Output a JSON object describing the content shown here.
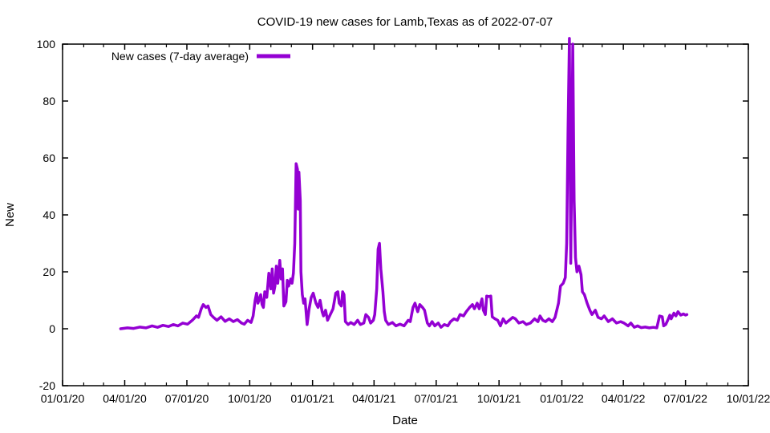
{
  "title": "COVID-19 new cases for Lamb,Texas as of 2022-07-07",
  "legend": {
    "label": "New cases (7-day average)"
  },
  "axes": {
    "x_label": "Date",
    "y_label": "New",
    "x_tick_labels": [
      "01/01/20",
      "04/01/20",
      "07/01/20",
      "10/01/20",
      "01/01/21",
      "04/01/21",
      "07/01/21",
      "10/01/21",
      "01/01/22",
      "04/01/22",
      "07/01/22",
      "10/01/22"
    ],
    "y_tick_labels": [
      "-20",
      "0",
      "20",
      "40",
      "60",
      "80",
      "100"
    ]
  },
  "colors": {
    "line": "#9400d3",
    "axis": "#000000",
    "text": "#000000",
    "background": "#ffffff"
  },
  "chart_data": {
    "type": "line",
    "title": "COVID-19 new cases for Lamb,Texas as of 2022-07-07",
    "xlabel": "Date",
    "ylabel": "New",
    "x_range": [
      "2020-01-01",
      "2022-10-01"
    ],
    "ylim": [
      -20,
      100
    ],
    "grid": false,
    "legend_position": "top-left-inside",
    "x_ticks": [
      {
        "t": "2020-01-01",
        "label": "01/01/20"
      },
      {
        "t": "2020-04-01",
        "label": "04/01/20"
      },
      {
        "t": "2020-07-01",
        "label": "07/01/20"
      },
      {
        "t": "2020-10-01",
        "label": "10/01/20"
      },
      {
        "t": "2021-01-01",
        "label": "01/01/21"
      },
      {
        "t": "2021-04-01",
        "label": "04/01/21"
      },
      {
        "t": "2021-07-01",
        "label": "07/01/21"
      },
      {
        "t": "2021-10-01",
        "label": "10/01/21"
      },
      {
        "t": "2022-01-01",
        "label": "01/01/22"
      },
      {
        "t": "2022-04-01",
        "label": "04/01/22"
      },
      {
        "t": "2022-07-01",
        "label": "07/01/22"
      },
      {
        "t": "2022-10-01",
        "label": "10/01/22"
      }
    ],
    "y_ticks": [
      -20,
      0,
      20,
      40,
      60,
      80,
      100
    ],
    "series": [
      {
        "name": "New cases (7-day average)",
        "color": "#9400d3",
        "points": [
          [
            "2020-03-26",
            0
          ],
          [
            "2020-04-05",
            0.3
          ],
          [
            "2020-04-14",
            0.1
          ],
          [
            "2020-04-23",
            0.6
          ],
          [
            "2020-05-02",
            0.3
          ],
          [
            "2020-05-11",
            1
          ],
          [
            "2020-05-19",
            0.5
          ],
          [
            "2020-05-27",
            1.2
          ],
          [
            "2020-06-04",
            0.8
          ],
          [
            "2020-06-11",
            1.5
          ],
          [
            "2020-06-18",
            1
          ],
          [
            "2020-06-25",
            2
          ],
          [
            "2020-07-02",
            1.6
          ],
          [
            "2020-07-09",
            3
          ],
          [
            "2020-07-15",
            4.5
          ],
          [
            "2020-07-18",
            4
          ],
          [
            "2020-07-22",
            7
          ],
          [
            "2020-07-25",
            8.5
          ],
          [
            "2020-07-29",
            7.5
          ],
          [
            "2020-08-01",
            8
          ],
          [
            "2020-08-05",
            5
          ],
          [
            "2020-08-09",
            4
          ],
          [
            "2020-08-14",
            3
          ],
          [
            "2020-08-20",
            4.2
          ],
          [
            "2020-08-26",
            2.6
          ],
          [
            "2020-09-01",
            3.5
          ],
          [
            "2020-09-07",
            2.5
          ],
          [
            "2020-09-13",
            3.2
          ],
          [
            "2020-09-19",
            2
          ],
          [
            "2020-09-23",
            1.6
          ],
          [
            "2020-09-28",
            3
          ],
          [
            "2020-10-03",
            2.2
          ],
          [
            "2020-10-06",
            4.5
          ],
          [
            "2020-10-09",
            10
          ],
          [
            "2020-10-11",
            12.5
          ],
          [
            "2020-10-13",
            9
          ],
          [
            "2020-10-17",
            12
          ],
          [
            "2020-10-19",
            8.5
          ],
          [
            "2020-10-21",
            7.5
          ],
          [
            "2020-10-23",
            13
          ],
          [
            "2020-10-26",
            11
          ],
          [
            "2020-10-29",
            19.5
          ],
          [
            "2020-11-01",
            14
          ],
          [
            "2020-11-03",
            21
          ],
          [
            "2020-11-05",
            12.5
          ],
          [
            "2020-11-07",
            15
          ],
          [
            "2020-11-09",
            22
          ],
          [
            "2020-11-11",
            16
          ],
          [
            "2020-11-14",
            24
          ],
          [
            "2020-11-16",
            17.5
          ],
          [
            "2020-11-18",
            21
          ],
          [
            "2020-11-20",
            8
          ],
          [
            "2020-11-23",
            9.5
          ],
          [
            "2020-11-25",
            17
          ],
          [
            "2020-11-27",
            15
          ],
          [
            "2020-11-30",
            17.5
          ],
          [
            "2020-12-02",
            16
          ],
          [
            "2020-12-04",
            19.5
          ],
          [
            "2020-12-06",
            30
          ],
          [
            "2020-12-08",
            58
          ],
          [
            "2020-12-10",
            56
          ],
          [
            "2020-12-11",
            42
          ],
          [
            "2020-12-12",
            55
          ],
          [
            "2020-12-14",
            45
          ],
          [
            "2020-12-15",
            20
          ],
          [
            "2020-12-17",
            12
          ],
          [
            "2020-12-19",
            9
          ],
          [
            "2020-12-21",
            10.5
          ],
          [
            "2020-12-24",
            1.5
          ],
          [
            "2020-12-27",
            7
          ],
          [
            "2020-12-30",
            11
          ],
          [
            "2021-01-02",
            12.5
          ],
          [
            "2021-01-06",
            9
          ],
          [
            "2021-01-09",
            7.5
          ],
          [
            "2021-01-12",
            10
          ],
          [
            "2021-01-15",
            6
          ],
          [
            "2021-01-17",
            4.5
          ],
          [
            "2021-01-20",
            6.5
          ],
          [
            "2021-01-23",
            3
          ],
          [
            "2021-01-27",
            5
          ],
          [
            "2021-01-31",
            7
          ],
          [
            "2021-02-04",
            12.5
          ],
          [
            "2021-02-07",
            13
          ],
          [
            "2021-02-09",
            9
          ],
          [
            "2021-02-12",
            8
          ],
          [
            "2021-02-14",
            13
          ],
          [
            "2021-02-16",
            12
          ],
          [
            "2021-02-18",
            2.5
          ],
          [
            "2021-02-22",
            1.5
          ],
          [
            "2021-02-26",
            2.2
          ],
          [
            "2021-03-03",
            1.5
          ],
          [
            "2021-03-08",
            3
          ],
          [
            "2021-03-12",
            1.5
          ],
          [
            "2021-03-17",
            2
          ],
          [
            "2021-03-20",
            5
          ],
          [
            "2021-03-24",
            4
          ],
          [
            "2021-03-27",
            2
          ],
          [
            "2021-03-31",
            3
          ],
          [
            "2021-04-02",
            5
          ],
          [
            "2021-04-05",
            14
          ],
          [
            "2021-04-07",
            28
          ],
          [
            "2021-04-09",
            30
          ],
          [
            "2021-04-11",
            21
          ],
          [
            "2021-04-14",
            13
          ],
          [
            "2021-04-16",
            6
          ],
          [
            "2021-04-18",
            3
          ],
          [
            "2021-04-22",
            1.5
          ],
          [
            "2021-04-28",
            2.2
          ],
          [
            "2021-05-03",
            1
          ],
          [
            "2021-05-09",
            1.6
          ],
          [
            "2021-05-15",
            1
          ],
          [
            "2021-05-21",
            3
          ],
          [
            "2021-05-24",
            2.5
          ],
          [
            "2021-05-28",
            7.5
          ],
          [
            "2021-05-31",
            9
          ],
          [
            "2021-06-04",
            6
          ],
          [
            "2021-06-07",
            8.5
          ],
          [
            "2021-06-11",
            7.5
          ],
          [
            "2021-06-14",
            6.5
          ],
          [
            "2021-06-18",
            2
          ],
          [
            "2021-06-21",
            1
          ],
          [
            "2021-06-25",
            2.5
          ],
          [
            "2021-06-29",
            1
          ],
          [
            "2021-07-04",
            2
          ],
          [
            "2021-07-08",
            0.5
          ],
          [
            "2021-07-13",
            1.5
          ],
          [
            "2021-07-18",
            1
          ],
          [
            "2021-07-22",
            2.5
          ],
          [
            "2021-07-27",
            3.5
          ],
          [
            "2021-08-01",
            3
          ],
          [
            "2021-08-05",
            5
          ],
          [
            "2021-08-10",
            4.5
          ],
          [
            "2021-08-14",
            6
          ],
          [
            "2021-08-19",
            7.5
          ],
          [
            "2021-08-23",
            8.5
          ],
          [
            "2021-08-26",
            7
          ],
          [
            "2021-08-30",
            9
          ],
          [
            "2021-09-02",
            7
          ],
          [
            "2021-09-06",
            10.5
          ],
          [
            "2021-09-08",
            6.5
          ],
          [
            "2021-09-11",
            5
          ],
          [
            "2021-09-13",
            11.5
          ],
          [
            "2021-09-16",
            11.3
          ],
          [
            "2021-09-19",
            11.5
          ],
          [
            "2021-09-21",
            4.2
          ],
          [
            "2021-09-25",
            3.5
          ],
          [
            "2021-09-29",
            3
          ],
          [
            "2021-10-03",
            1
          ],
          [
            "2021-10-07",
            3.5
          ],
          [
            "2021-10-11",
            2
          ],
          [
            "2021-10-16",
            3
          ],
          [
            "2021-10-21",
            4
          ],
          [
            "2021-10-25",
            3.5
          ],
          [
            "2021-10-30",
            2
          ],
          [
            "2021-11-05",
            2.5
          ],
          [
            "2021-11-10",
            1.5
          ],
          [
            "2021-11-16",
            2
          ],
          [
            "2021-11-22",
            3.5
          ],
          [
            "2021-11-27",
            2.5
          ],
          [
            "2021-11-30",
            4.5
          ],
          [
            "2021-12-04",
            3
          ],
          [
            "2021-12-08",
            2.5
          ],
          [
            "2021-12-13",
            3.5
          ],
          [
            "2021-12-18",
            2.5
          ],
          [
            "2021-12-22",
            4
          ],
          [
            "2021-12-27",
            9
          ],
          [
            "2021-12-30",
            15
          ],
          [
            "2022-01-03",
            16
          ],
          [
            "2022-01-06",
            18
          ],
          [
            "2022-01-08",
            30
          ],
          [
            "2022-01-10",
            70
          ],
          [
            "2022-01-12",
            102
          ],
          [
            "2022-01-14",
            23
          ],
          [
            "2022-01-17",
            100
          ],
          [
            "2022-01-19",
            45
          ],
          [
            "2022-01-21",
            25
          ],
          [
            "2022-01-23",
            20
          ],
          [
            "2022-01-26",
            22
          ],
          [
            "2022-01-29",
            19
          ],
          [
            "2022-01-31",
            13
          ],
          [
            "2022-02-03",
            12
          ],
          [
            "2022-02-07",
            9
          ],
          [
            "2022-02-11",
            6.5
          ],
          [
            "2022-02-14",
            5
          ],
          [
            "2022-02-19",
            6.5
          ],
          [
            "2022-02-23",
            4
          ],
          [
            "2022-02-28",
            3.5
          ],
          [
            "2022-03-04",
            4.5
          ],
          [
            "2022-03-10",
            2.5
          ],
          [
            "2022-03-16",
            3.5
          ],
          [
            "2022-03-22",
            2
          ],
          [
            "2022-03-28",
            2.5
          ],
          [
            "2022-04-02",
            2
          ],
          [
            "2022-04-08",
            1
          ],
          [
            "2022-04-12",
            2
          ],
          [
            "2022-04-17",
            0.5
          ],
          [
            "2022-04-22",
            1
          ],
          [
            "2022-04-27",
            0.4
          ],
          [
            "2022-05-03",
            0.6
          ],
          [
            "2022-05-09",
            0.3
          ],
          [
            "2022-05-15",
            0.5
          ],
          [
            "2022-05-20",
            0.3
          ],
          [
            "2022-05-24",
            4.5
          ],
          [
            "2022-05-28",
            4.2
          ],
          [
            "2022-05-30",
            1
          ],
          [
            "2022-06-02",
            1.5
          ],
          [
            "2022-06-05",
            3
          ],
          [
            "2022-06-08",
            4.8
          ],
          [
            "2022-06-10",
            3.5
          ],
          [
            "2022-06-14",
            5.5
          ],
          [
            "2022-06-17",
            4.5
          ],
          [
            "2022-06-20",
            6
          ],
          [
            "2022-06-24",
            4.8
          ],
          [
            "2022-06-28",
            5.2
          ],
          [
            "2022-07-01",
            4.8
          ],
          [
            "2022-07-03",
            5
          ]
        ]
      }
    ]
  }
}
